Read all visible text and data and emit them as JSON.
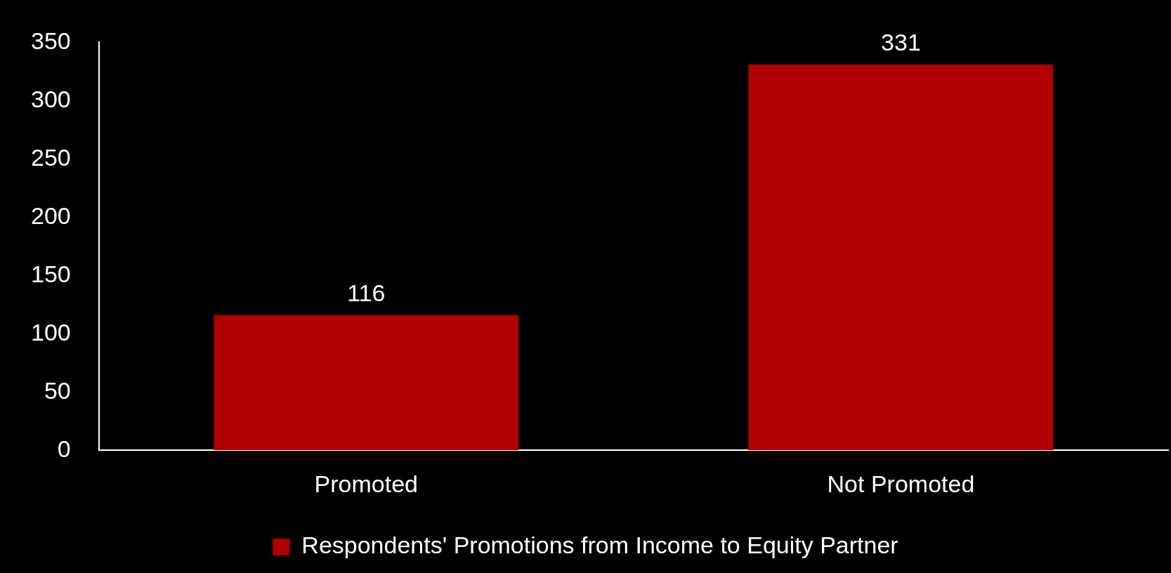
{
  "chart_data": {
    "type": "bar",
    "categories": [
      "Promoted",
      "Not Promoted"
    ],
    "series": [
      {
        "name": "Respondents' Promotions from Income to Equity Partner",
        "color": "#b00000",
        "values": [
          116,
          331
        ]
      }
    ],
    "ylim": [
      0,
      350
    ],
    "yticks": [
      0,
      50,
      100,
      150,
      200,
      250,
      300,
      350
    ],
    "data_labels": true,
    "legend": "bottom",
    "grid": false
  }
}
